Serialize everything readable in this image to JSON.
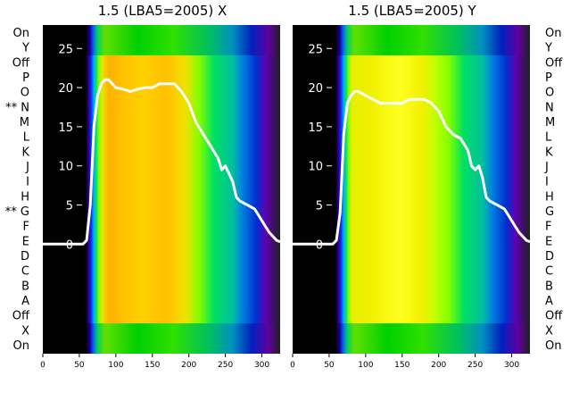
{
  "chart_data": [
    {
      "type": "heatmap",
      "title": "1.5 (LBA5=2005) X",
      "xlim": [
        0,
        325
      ],
      "x_ticks": [
        "0",
        "50",
        "100",
        "150",
        "200",
        "250",
        "300"
      ],
      "ylim": [
        -14,
        28
      ],
      "y_ticks": [
        "0",
        "5",
        "10",
        "15",
        "20",
        "25"
      ],
      "row_labels": [
        "On",
        "X",
        "Off",
        "A",
        "B",
        "C",
        "D",
        "E",
        "F",
        "** G",
        "H",
        "I",
        "J",
        "K",
        "L",
        "M",
        "** N",
        "O",
        "P",
        "Off",
        "Y",
        "On"
      ],
      "curve": {
        "x": [
          0,
          55,
          60,
          65,
          70,
          75,
          80,
          85,
          90,
          100,
          110,
          120,
          130,
          140,
          150,
          160,
          170,
          180,
          190,
          200,
          210,
          220,
          230,
          240,
          245,
          250,
          255,
          260,
          265,
          270,
          280,
          290,
          300,
          310,
          320,
          325
        ],
        "y": [
          0,
          0,
          0.5,
          5,
          15,
          19,
          20.5,
          21,
          21,
          20,
          19.8,
          19.5,
          19.8,
          20,
          20,
          20.5,
          20.5,
          20.5,
          19.5,
          18,
          15.5,
          14,
          12.5,
          11,
          9.5,
          10,
          9,
          8,
          6,
          5.5,
          5,
          4.5,
          3,
          1.5,
          0.5,
          0.3
        ]
      }
    },
    {
      "type": "heatmap",
      "title": "1.5 (LBA5=2005) Y",
      "xlim": [
        0,
        325
      ],
      "x_ticks": [
        "0",
        "50",
        "100",
        "150",
        "200",
        "250",
        "300"
      ],
      "ylim": [
        -14,
        28
      ],
      "y_ticks": [
        "0",
        "5",
        "10",
        "15",
        "20",
        "25"
      ],
      "row_labels": [
        "On",
        "X",
        "Off",
        "A",
        "B",
        "C",
        "D",
        "E",
        "F",
        "G",
        "H",
        "I",
        "J",
        "K",
        "L",
        "M",
        "N",
        "O",
        "P",
        "Off",
        "Y",
        "On"
      ],
      "curve": {
        "x": [
          0,
          55,
          60,
          65,
          70,
          75,
          80,
          85,
          90,
          100,
          110,
          120,
          130,
          140,
          150,
          160,
          170,
          180,
          190,
          200,
          210,
          220,
          230,
          240,
          245,
          250,
          255,
          260,
          265,
          270,
          280,
          290,
          300,
          310,
          320,
          325
        ],
        "y": [
          0,
          0,
          0.5,
          4,
          14,
          18,
          19,
          19.5,
          19.5,
          19,
          18.5,
          18,
          18,
          18,
          18,
          18.5,
          18.5,
          18.5,
          18,
          17,
          15,
          14,
          13.5,
          12,
          10,
          9.5,
          10,
          8.5,
          6,
          5.5,
          5,
          4.5,
          3,
          1.5,
          0.5,
          0.3
        ]
      }
    }
  ]
}
